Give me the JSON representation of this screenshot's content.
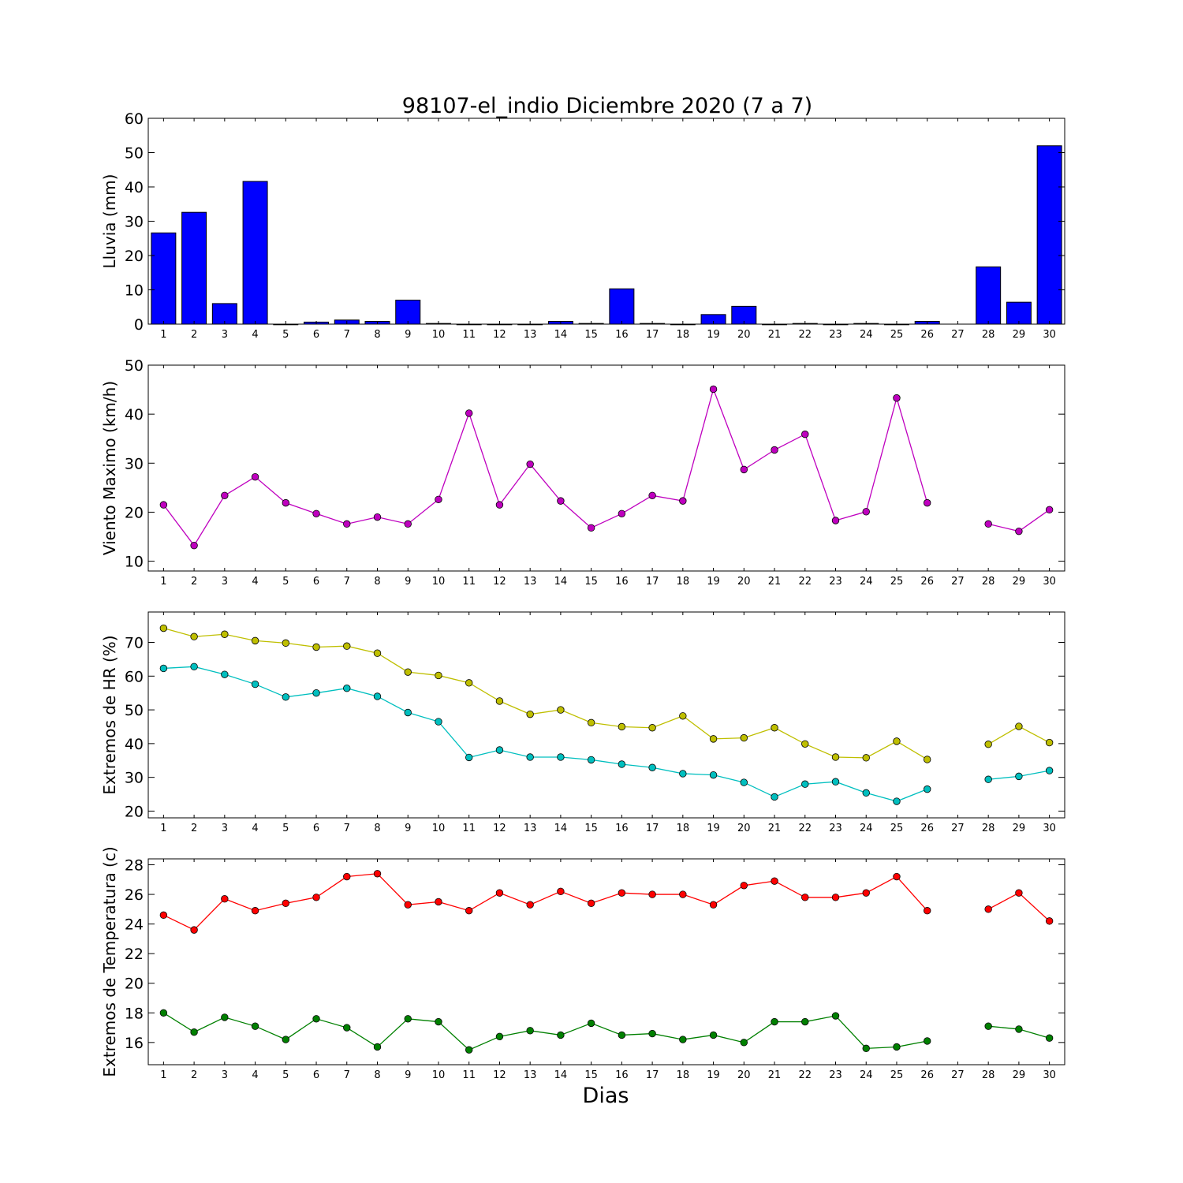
{
  "figure": {
    "title": "98107-el_indio Diciembre 2020  (7 a 7)",
    "xlabel": "Dias"
  },
  "chart_data": [
    {
      "type": "bar",
      "id": "rain",
      "ylabel": "Lluvia (mm)",
      "ylim": [
        0,
        60
      ],
      "yticks": [
        0,
        10,
        20,
        30,
        40,
        50,
        60
      ],
      "xlim": [
        0.5,
        30.5
      ],
      "xticks": [
        1,
        2,
        3,
        4,
        5,
        6,
        7,
        8,
        9,
        10,
        11,
        12,
        13,
        14,
        15,
        16,
        17,
        18,
        19,
        20,
        21,
        22,
        23,
        24,
        25,
        26,
        27,
        28,
        29,
        30
      ],
      "x": [
        1,
        2,
        3,
        4,
        5,
        6,
        7,
        8,
        9,
        10,
        11,
        12,
        13,
        14,
        15,
        16,
        17,
        18,
        19,
        20,
        21,
        22,
        23,
        24,
        25,
        26,
        28,
        29,
        30
      ],
      "values": [
        26.6,
        32.6,
        6.0,
        41.6,
        0,
        0.6,
        1.2,
        0.8,
        7.0,
        0.2,
        0,
        0,
        0,
        0.8,
        0.2,
        10.3,
        0.2,
        0,
        2.8,
        5.2,
        0,
        0.2,
        0,
        0.2,
        0,
        0.8,
        16.7,
        6.4,
        52.0
      ],
      "color": "#0000ff",
      "grid": false
    },
    {
      "type": "line",
      "id": "wind",
      "ylabel": "Viento Maximo (km/h)",
      "ylim": [
        8,
        50
      ],
      "yticks": [
        10,
        20,
        30,
        40,
        50
      ],
      "xlim": [
        0.5,
        30.5
      ],
      "xticks": [
        1,
        2,
        3,
        4,
        5,
        6,
        7,
        8,
        9,
        10,
        11,
        12,
        13,
        14,
        15,
        16,
        17,
        18,
        19,
        20,
        21,
        22,
        23,
        24,
        25,
        26,
        27,
        28,
        29,
        30
      ],
      "series": [
        {
          "color": "#bf00bf",
          "segments": [
            {
              "x": [
                1,
                2,
                3,
                4,
                5,
                6,
                7,
                8,
                9,
                10,
                11,
                12,
                13,
                14,
                15,
                16,
                17,
                18,
                19,
                20,
                21,
                22,
                23,
                24,
                25,
                26
              ],
              "y": [
                21.5,
                13.2,
                23.4,
                27.2,
                21.9,
                19.7,
                17.6,
                19.0,
                17.6,
                22.6,
                40.2,
                21.5,
                29.8,
                22.3,
                16.8,
                19.7,
                23.4,
                22.3,
                45.1,
                28.7,
                32.7,
                35.9,
                18.3,
                20.1,
                43.3,
                21.9
              ]
            },
            {
              "x": [
                28,
                29,
                30
              ],
              "y": [
                17.6,
                16.1,
                20.5
              ]
            }
          ]
        }
      ],
      "grid": false
    },
    {
      "type": "line",
      "id": "humidity",
      "ylabel": "Extremos de HR (%)",
      "ylim": [
        18,
        79
      ],
      "yticks": [
        20,
        30,
        40,
        50,
        60,
        70
      ],
      "xlim": [
        0.5,
        30.5
      ],
      "xticks": [
        1,
        2,
        3,
        4,
        5,
        6,
        7,
        8,
        9,
        10,
        11,
        12,
        13,
        14,
        15,
        16,
        17,
        18,
        19,
        20,
        21,
        22,
        23,
        24,
        25,
        26,
        27,
        28,
        29,
        30
      ],
      "series": [
        {
          "color": "#bfbf00",
          "segments": [
            {
              "x": [
                1,
                2,
                3,
                4,
                5,
                6,
                7,
                8,
                9,
                10,
                11,
                12,
                13,
                14,
                15,
                16,
                17,
                18,
                19,
                20,
                21,
                22,
                23,
                24,
                25,
                26
              ],
              "y": [
                74.2,
                71.7,
                72.4,
                70.5,
                69.8,
                68.6,
                68.9,
                66.8,
                61.2,
                60.2,
                58.0,
                52.6,
                48.7,
                50.0,
                46.2,
                45.0,
                44.7,
                48.2,
                41.4,
                41.7,
                44.7,
                39.9,
                36.0,
                35.8,
                40.7,
                35.3
              ]
            },
            {
              "x": [
                28,
                29,
                30
              ],
              "y": [
                39.8,
                45.1,
                40.3
              ]
            }
          ]
        },
        {
          "color": "#00bfbf",
          "segments": [
            {
              "x": [
                1,
                2,
                3,
                4,
                5,
                6,
                7,
                8,
                9,
                10,
                11,
                12,
                13,
                14,
                15,
                16,
                17,
                18,
                19,
                20,
                21,
                22,
                23,
                24,
                25,
                26
              ],
              "y": [
                62.3,
                62.8,
                60.5,
                57.6,
                53.8,
                55.0,
                56.4,
                54.0,
                49.2,
                46.5,
                35.9,
                38.1,
                36.0,
                36.0,
                35.2,
                33.9,
                32.9,
                31.1,
                30.7,
                28.5,
                24.2,
                28.0,
                28.7,
                25.4,
                22.9,
                26.5
              ]
            },
            {
              "x": [
                28,
                29,
                30
              ],
              "y": [
                29.4,
                30.3,
                32.0
              ]
            }
          ]
        }
      ],
      "grid": false
    },
    {
      "type": "line",
      "id": "temperature",
      "ylabel": "Extremos de Temperatura (c)",
      "ylim": [
        14.5,
        28.4
      ],
      "yticks": [
        16,
        18,
        20,
        22,
        24,
        26,
        28
      ],
      "xlim": [
        0.5,
        30.5
      ],
      "xticks": [
        1,
        2,
        3,
        4,
        5,
        6,
        7,
        8,
        9,
        10,
        11,
        12,
        13,
        14,
        15,
        16,
        17,
        18,
        19,
        20,
        21,
        22,
        23,
        24,
        25,
        26,
        27,
        28,
        29,
        30
      ],
      "series": [
        {
          "color": "#ff0000",
          "segments": [
            {
              "x": [
                1,
                2,
                3,
                4,
                5,
                6,
                7,
                8,
                9,
                10,
                11,
                12,
                13,
                14,
                15,
                16,
                17,
                18,
                19,
                20,
                21,
                22,
                23,
                24,
                25,
                26
              ],
              "y": [
                24.6,
                23.6,
                25.7,
                24.9,
                25.4,
                25.8,
                27.2,
                27.4,
                25.3,
                25.5,
                24.9,
                26.1,
                25.3,
                26.2,
                25.4,
                26.1,
                26.0,
                26.0,
                25.3,
                26.6,
                26.9,
                25.8,
                25.8,
                26.1,
                27.2,
                24.9
              ]
            },
            {
              "x": [
                28,
                29,
                30
              ],
              "y": [
                25.0,
                26.1,
                24.2
              ]
            }
          ]
        },
        {
          "color": "#008000",
          "segments": [
            {
              "x": [
                1,
                2,
                3,
                4,
                5,
                6,
                7,
                8,
                9,
                10,
                11,
                12,
                13,
                14,
                15,
                16,
                17,
                18,
                19,
                20,
                21,
                22,
                23,
                24,
                25,
                26
              ],
              "y": [
                18.0,
                16.7,
                17.7,
                17.1,
                16.2,
                17.6,
                17.0,
                15.7,
                17.6,
                17.4,
                15.5,
                16.4,
                16.8,
                16.5,
                17.3,
                16.5,
                16.6,
                16.2,
                16.5,
                16.0,
                17.4,
                17.4,
                17.8,
                15.6,
                15.7,
                16.1
              ]
            },
            {
              "x": [
                28,
                29,
                30
              ],
              "y": [
                17.1,
                16.9,
                16.3
              ]
            }
          ]
        }
      ],
      "grid": false
    }
  ]
}
